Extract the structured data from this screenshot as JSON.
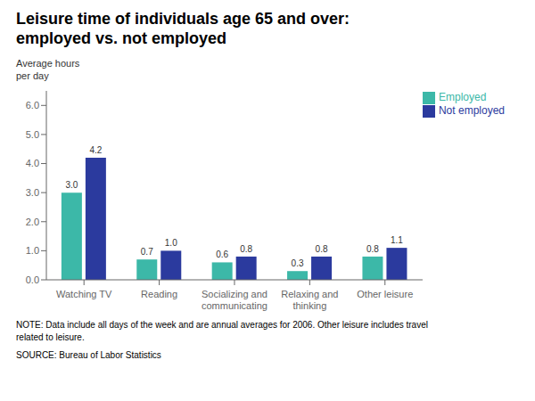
{
  "chart_data": {
    "type": "bar",
    "title": "Leisure time of individuals age 65 and over:",
    "subtitle": "employed vs. not employed",
    "y_label": "Average hours\nper day",
    "categories": [
      "Watching TV",
      "Reading",
      "Socializing and\ncommunicating",
      "Relaxing and\nthinking",
      "Other leisure"
    ],
    "series": [
      {
        "name": "Employed",
        "color": "#3CB8A8",
        "values": [
          3.0,
          0.7,
          0.6,
          0.3,
          0.8
        ],
        "value_labels": [
          "3.0",
          "0.7",
          "0.6",
          "0.3",
          "0.8"
        ]
      },
      {
        "name": "Not employed",
        "color": "#2B3A9E",
        "values": [
          4.2,
          1.0,
          0.8,
          0.8,
          1.1
        ],
        "value_labels": [
          "4.2",
          "1.0",
          "0.8",
          "0.8",
          "1.1"
        ]
      }
    ],
    "ylim": [
      0,
      6.5
    ],
    "yticks": [
      {
        "value": 0,
        "label": "0.0"
      },
      {
        "value": 1,
        "label": "1.0"
      },
      {
        "value": 2,
        "label": "2.0"
      },
      {
        "value": 3,
        "label": "3.0"
      },
      {
        "value": 4,
        "label": "4.0"
      },
      {
        "value": 5,
        "label": "5.0"
      },
      {
        "value": 6,
        "label": "6.0"
      }
    ],
    "data_labels": true,
    "legend": "upper right",
    "grid": false,
    "annotations": [
      "NOTE: Data include all days of the week and are annual averages for 2006. Other leisure includes travel\nrelated to leisure.",
      "SOURCE: Bureau of Labor Statistics"
    ]
  }
}
